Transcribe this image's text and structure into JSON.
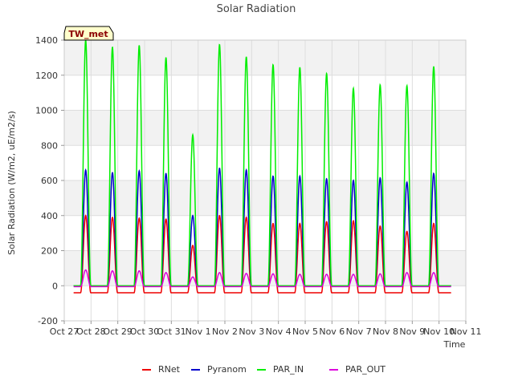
{
  "chart_data": {
    "type": "line",
    "title": "Solar Radiation",
    "xlabel": "Time",
    "ylabel": "Solar Radiation (W/m2, uE/m2/s)",
    "badge": "TW_met",
    "xlim": [
      0,
      15
    ],
    "ylim": [
      -200,
      1400
    ],
    "yticks": [
      -200,
      0,
      200,
      400,
      600,
      800,
      1000,
      1200,
      1400
    ],
    "xticks": [
      {
        "v": 0,
        "label": "Oct 27"
      },
      {
        "v": 1,
        "label": "Oct 28"
      },
      {
        "v": 2,
        "label": "Oct 29"
      },
      {
        "v": 3,
        "label": "Oct 30"
      },
      {
        "v": 4,
        "label": "Oct 31"
      },
      {
        "v": 5,
        "label": "Nov 1"
      },
      {
        "v": 6,
        "label": "Nov 2"
      },
      {
        "v": 7,
        "label": "Nov 3"
      },
      {
        "v": 8,
        "label": "Nov 4"
      },
      {
        "v": 9,
        "label": "Nov 5"
      },
      {
        "v": 10,
        "label": "Nov 6"
      },
      {
        "v": 11,
        "label": "Nov 7"
      },
      {
        "v": 12,
        "label": "Nov 8"
      },
      {
        "v": 13,
        "label": "Nov 9"
      },
      {
        "v": 14,
        "label": "Nov 10"
      },
      {
        "v": 15,
        "label": "Nov 11"
      }
    ],
    "grid": true,
    "legend_position": "bottom",
    "series": [
      {
        "name": "RNet",
        "color": "#ee0000",
        "night": -40,
        "peaks": [
          400,
          390,
          385,
          380,
          230,
          400,
          390,
          355,
          355,
          365,
          370,
          340,
          310,
          355
        ]
      },
      {
        "name": "Pyranom",
        "color": "#0000cc",
        "night": 0,
        "peaks": [
          660,
          645,
          655,
          640,
          400,
          670,
          660,
          625,
          625,
          610,
          600,
          615,
          590,
          640
        ]
      },
      {
        "name": "PAR_IN",
        "color": "#00ee00",
        "night": 0,
        "peaks": [
          1400,
          1360,
          1370,
          1300,
          860,
          1375,
          1305,
          1260,
          1245,
          1210,
          1125,
          1145,
          1140,
          1250
        ]
      },
      {
        "name": "PAR_OUT",
        "color": "#dd00dd",
        "night": -5,
        "peaks": [
          90,
          85,
          85,
          75,
          50,
          75,
          70,
          68,
          65,
          65,
          65,
          68,
          75,
          75
        ]
      }
    ]
  }
}
